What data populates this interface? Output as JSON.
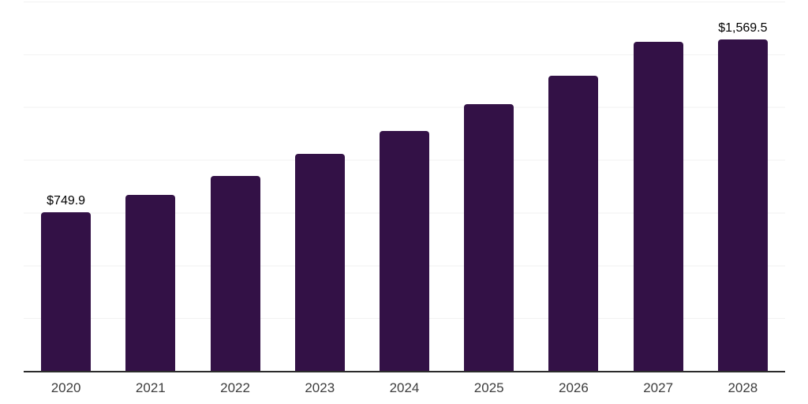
{
  "chart_data": {
    "type": "bar",
    "title": "",
    "xlabel": "",
    "ylabel": "",
    "categories": [
      "2020",
      "2021",
      "2022",
      "2023",
      "2024",
      "2025",
      "2026",
      "2027",
      "2028"
    ],
    "values": [
      749.9,
      835,
      925,
      1027,
      1137,
      1263,
      1400,
      1561,
      1569.5
    ],
    "bar_labels": [
      "$749.9",
      "",
      "",
      "",
      "",
      "",
      "",
      "",
      "$1,569.5"
    ],
    "ylim": [
      0,
      1750
    ],
    "gridline_step": 250,
    "grid": "horizontal-only",
    "legend_position": "none",
    "y_tick_labels_visible": false,
    "colors": {
      "bar": "#331146",
      "gridline": "#f2f2f2",
      "axis_line": "#2b2b2b",
      "value_label": "#000000",
      "tick_label": "#3d3d3d",
      "background": "#ffffff"
    }
  }
}
